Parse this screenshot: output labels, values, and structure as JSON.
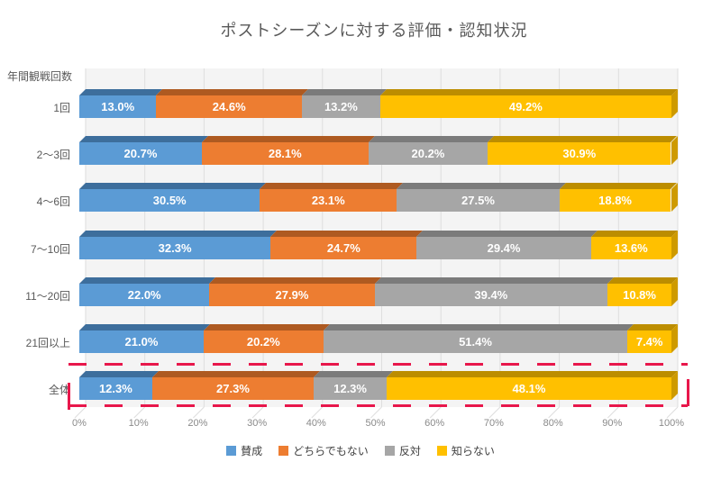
{
  "title": "ポストシーズンに対する評価・認知状況",
  "chart_data": {
    "type": "bar",
    "stacked": true,
    "percent_stacked": true,
    "orientation": "horizontal",
    "style_3d": true,
    "title": "ポストシーズンに対する評価・認知状況",
    "axis_title": "年間観戦回数",
    "categories": [
      "1回",
      "2〜3回",
      "4〜6回",
      "7〜10回",
      "11〜20回",
      "21回以上",
      "全体"
    ],
    "series": [
      {
        "name": "賛成",
        "color": "#5B9BD5",
        "dark": "#3D6E9C",
        "cap": "#46719B",
        "values": [
          13.0,
          20.7,
          30.5,
          32.3,
          22.0,
          21.0,
          12.3
        ]
      },
      {
        "name": "どちらでもない",
        "color": "#ED7D31",
        "dark": "#AE5A21",
        "cap": "#B35E20",
        "values": [
          24.6,
          28.1,
          23.1,
          24.7,
          27.9,
          20.2,
          27.3
        ]
      },
      {
        "name": "反対",
        "color": "#A6A6A6",
        "dark": "#7B7B7B",
        "cap": "#818181",
        "values": [
          13.2,
          20.2,
          27.5,
          29.4,
          39.4,
          51.4,
          12.3
        ]
      },
      {
        "name": "知らない",
        "color": "#FFC000",
        "dark": "#BC8D00",
        "cap": "#CE9A00",
        "values": [
          49.2,
          30.9,
          18.8,
          13.6,
          10.8,
          7.4,
          48.1
        ]
      }
    ],
    "x_ticks": [
      "0%",
      "10%",
      "20%",
      "30%",
      "40%",
      "50%",
      "60%",
      "70%",
      "80%",
      "90%",
      "100%"
    ],
    "xlim": [
      0,
      100
    ],
    "gridlines": true,
    "legend_position": "bottom",
    "data_label_format": "0.0%",
    "highlight": {
      "category": "全体",
      "style": "dashed-box",
      "color": "#E8174B"
    }
  },
  "colors": {
    "plot_wall": "#F4F4F4",
    "gridline": "#DEDEDE",
    "title_text": "#595959",
    "label_text": "#595959",
    "tick_text": "#8a8a8a",
    "bar_label_text": "#ffffff"
  }
}
